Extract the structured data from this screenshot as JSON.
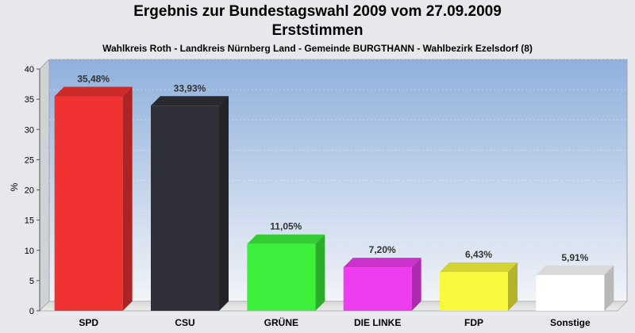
{
  "chart_data": {
    "type": "bar",
    "title": "Ergebnis zur Bundestagswahl 2009 vom 27.09.2009",
    "subtitle": "Erststimmen",
    "caption": "Wahlkreis Roth - Landkreis Nürnberg Land - Gemeinde BURGTHANN - Wahlbezirk Ezelsdorf (8)",
    "xlabel": "",
    "ylabel": "%",
    "ylim": [
      0,
      40
    ],
    "yticks": [
      0,
      5,
      10,
      15,
      20,
      25,
      30,
      35,
      40
    ],
    "grid": true,
    "categories": [
      "SPD",
      "CSU",
      "GRÜNE",
      "DIE LINKE",
      "FDP",
      "Sonstige"
    ],
    "values": [
      35.48,
      33.93,
      11.05,
      7.2,
      6.43,
      5.91
    ],
    "value_labels": [
      "35,48%",
      "33,93%",
      "11,05%",
      "7,20%",
      "6,43%",
      "5,91%"
    ],
    "colors": [
      "#f03232",
      "#303038",
      "#3cf03c",
      "#f03cf0",
      "#f8f83c",
      "#ffffff"
    ]
  }
}
